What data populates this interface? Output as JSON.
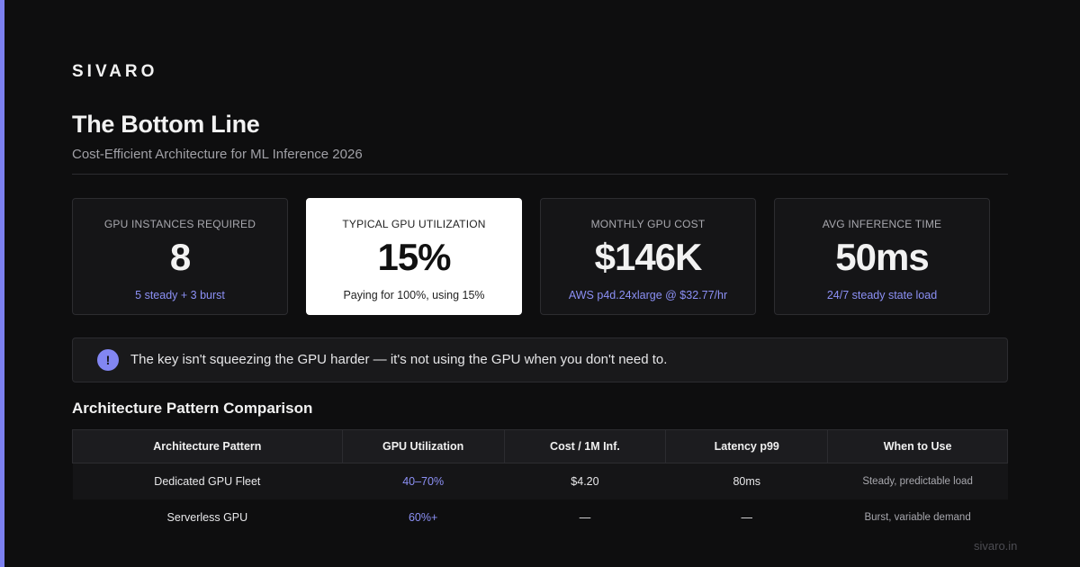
{
  "brand": "SIVARO",
  "header": {
    "title": "The Bottom Line",
    "subtitle": "Cost-Efficient Architecture for ML Inference 2026"
  },
  "cards": [
    {
      "label": "GPU INSTANCES REQUIRED",
      "value": "8",
      "note": "5 steady + 3 burst"
    },
    {
      "label": "TYPICAL GPU UTILIZATION",
      "value": "15%",
      "note": "Paying for 100%, using 15%"
    },
    {
      "label": "MONTHLY GPU COST",
      "value": "$146K",
      "note": "AWS p4d.24xlarge @ $32.77/hr"
    },
    {
      "label": "AVG INFERENCE TIME",
      "value": "50ms",
      "note": "24/7 steady state load"
    }
  ],
  "callout": {
    "icon": "!",
    "text": "The key isn't squeezing the GPU harder — it's not using the GPU when you don't need to."
  },
  "table": {
    "title": "Architecture Pattern Comparison",
    "columns": [
      "Architecture Pattern",
      "GPU Utilization",
      "Cost / 1M Inf.",
      "Latency p99",
      "When to Use"
    ],
    "rows": [
      [
        "Dedicated GPU Fleet",
        "40–70%",
        "$4.20",
        "80ms",
        "Steady, predictable load"
      ],
      [
        "Serverless GPU",
        "60%+",
        "—",
        "—",
        "Burst, variable demand"
      ]
    ]
  },
  "footer": "sivaro.in"
}
